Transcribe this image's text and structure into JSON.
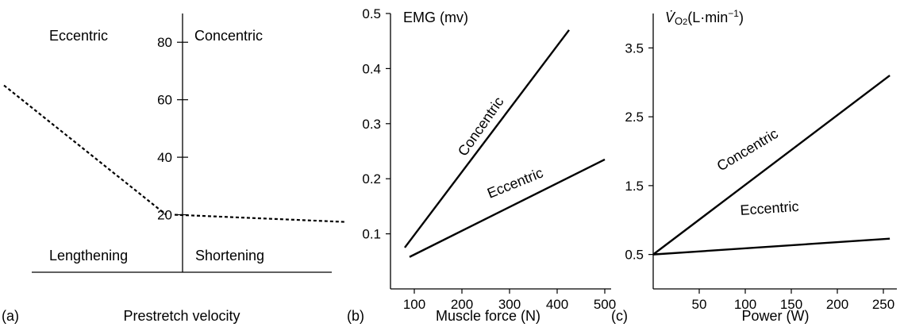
{
  "chart_data": [
    {
      "panel_label": "(a)",
      "type": "line",
      "xlabel": "Prestretch velocity",
      "ylabel": "",
      "ylim": [
        0,
        90
      ],
      "yticks": [
        20,
        40,
        60,
        80
      ],
      "region_labels": {
        "top_left": "Eccentric",
        "top_right": "Concentric",
        "bottom_left": "Lengthening",
        "bottom_right": "Shortening"
      },
      "xlim": [
        -1,
        1
      ],
      "series": [
        {
          "name": "",
          "style": "dashed",
          "x": [
            -1.0,
            -0.05
          ],
          "y": [
            65,
            20
          ]
        },
        {
          "name": "",
          "style": "dashed",
          "x": [
            0.0,
            1.0
          ],
          "y": [
            20,
            17.5
          ]
        }
      ],
      "grid": false
    },
    {
      "panel_label": "(b)",
      "type": "line",
      "xlabel": "Muscle force (N)",
      "ylabel": "EMG (mv)",
      "xlim": [
        50,
        500
      ],
      "ylim": [
        0,
        0.5
      ],
      "xticks": [
        100,
        200,
        300,
        400,
        500
      ],
      "yticks": [
        0.1,
        0.2,
        0.3,
        0.4,
        0.5
      ],
      "ytick_labels": [
        "0.1",
        "0.2",
        "0.3",
        "0.4",
        "0.5"
      ],
      "series": [
        {
          "name": "Concentric",
          "x": [
            80,
            425
          ],
          "y": [
            0.075,
            0.47
          ]
        },
        {
          "name": "Eccentric",
          "x": [
            90,
            500
          ],
          "y": [
            0.058,
            0.235
          ]
        }
      ],
      "grid": false
    },
    {
      "panel_label": "(c)",
      "type": "line",
      "xlabel": "Power (W)",
      "ylabel_prefix": "V̇",
      "ylabel_sub": "O",
      "ylabel_sub2": "2",
      "ylabel_suffix": "(L·min",
      "ylabel_sup": "−1",
      "ylabel_end": ")",
      "xlim": [
        0,
        275
      ],
      "ylim": [
        0,
        4
      ],
      "xticks": [
        50,
        100,
        150,
        200,
        250
      ],
      "yticks": [
        0.5,
        1.5,
        2.5,
        3.5
      ],
      "ytick_labels": [
        "0.5",
        "1.5",
        "2.5",
        "3.5"
      ],
      "series": [
        {
          "name": "Concentric",
          "x": [
            0,
            257
          ],
          "y": [
            0.5,
            3.1
          ]
        },
        {
          "name": "Eccentric",
          "x": [
            0,
            257
          ],
          "y": [
            0.5,
            0.73
          ]
        }
      ],
      "grid": false
    }
  ]
}
